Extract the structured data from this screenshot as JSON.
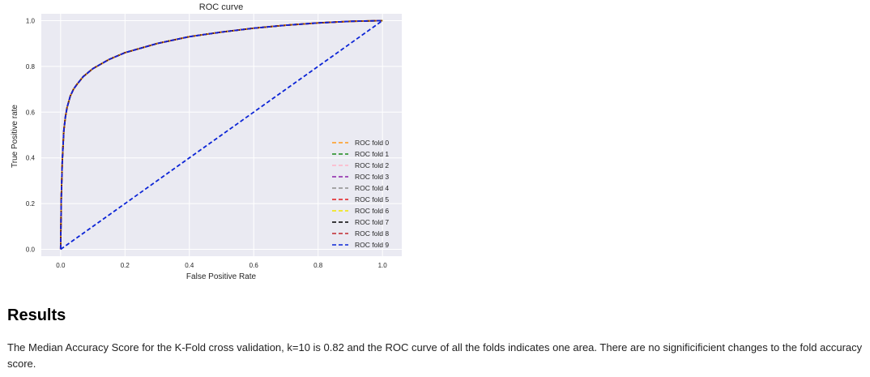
{
  "chart_data": {
    "type": "line",
    "title": "ROC curve",
    "xlabel": "False Positive Rate",
    "ylabel": "True Positive rate",
    "xlim": [
      -0.06,
      1.06
    ],
    "ylim": [
      -0.03,
      1.03
    ],
    "x_ticks": [
      "0.0",
      "0.2",
      "0.4",
      "0.6",
      "0.8",
      "1.0"
    ],
    "y_ticks": [
      "0.0",
      "0.2",
      "0.4",
      "0.6",
      "0.8",
      "1.0"
    ],
    "grid": true,
    "legend_position": "lower-right",
    "line_style": "dashed",
    "roc_curve": {
      "x": [
        0,
        0.002,
        0.005,
        0.01,
        0.015,
        0.02,
        0.03,
        0.04,
        0.05,
        0.07,
        0.1,
        0.15,
        0.2,
        0.3,
        0.4,
        0.5,
        0.6,
        0.7,
        0.8,
        0.9,
        1.0
      ],
      "y": [
        0,
        0.22,
        0.38,
        0.52,
        0.58,
        0.62,
        0.67,
        0.7,
        0.72,
        0.755,
        0.79,
        0.83,
        0.86,
        0.9,
        0.93,
        0.95,
        0.967,
        0.98,
        0.99,
        0.997,
        1.0
      ]
    },
    "series": [
      {
        "name": "ROC fold 0",
        "color": "#ff9a1a"
      },
      {
        "name": "ROC fold 1",
        "color": "#1a8a1a"
      },
      {
        "name": "ROC fold 2",
        "color": "#ffb3c6"
      },
      {
        "name": "ROC fold 3",
        "color": "#8b1fa8"
      },
      {
        "name": "ROC fold 4",
        "color": "#8c8c8c"
      },
      {
        "name": "ROC fold 5",
        "color": "#e31a1c"
      },
      {
        "name": "ROC fold 6",
        "color": "#f2e600"
      },
      {
        "name": "ROC fold 7",
        "color": "#000000"
      },
      {
        "name": "ROC fold 8",
        "color": "#c0282d"
      },
      {
        "name": "ROC fold 9",
        "color": "#0b24d6"
      }
    ],
    "diagonal": {
      "x": [
        0,
        1
      ],
      "y": [
        0,
        1
      ],
      "color": "#0b24d6"
    }
  },
  "results": {
    "heading": "Results",
    "text": "The Median Accuracy Score for the K-Fold cross validation, k=10 is 0.82 and the ROC curve of all the folds indicates one area. There are no significificient changes to the fold accuracy score."
  }
}
